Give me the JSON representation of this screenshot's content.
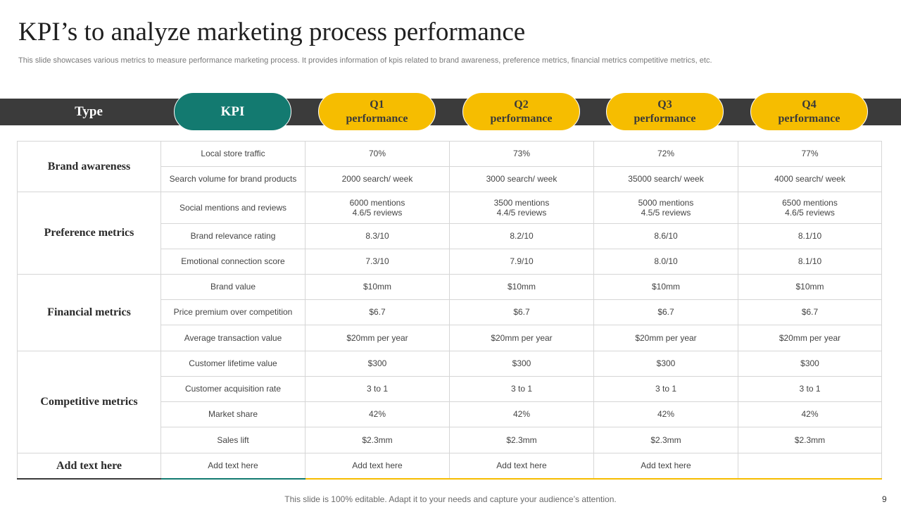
{
  "slide": {
    "title": "KPI’s to analyze marketing process performance",
    "subtitle": "This slide showcases various metrics to measure performance marketing process. It provides information of kpis related to brand awareness, preference metrics, financial metrics competitive metrics, etc.",
    "footer": "This slide is 100% editable. Adapt it to your needs and capture your audience’s attention.",
    "page_number": "9"
  },
  "header": {
    "type": "Type",
    "kpi": "KPI",
    "quarters": [
      {
        "q": "Q1",
        "p": "performance"
      },
      {
        "q": "Q2",
        "p": "performance"
      },
      {
        "q": "Q3",
        "p": "performance"
      },
      {
        "q": "Q4",
        "p": "performance"
      }
    ]
  },
  "categories": [
    "Brand awareness",
    "Preference metrics",
    "Financial metrics",
    "Competitive metrics",
    "Add text here"
  ],
  "rows": [
    {
      "kpi": "Local store traffic",
      "q": [
        "70%",
        "73%",
        "72%",
        "77%"
      ]
    },
    {
      "kpi": "Search volume for brand products",
      "q": [
        "2000 search/ week",
        "3000 search/ week",
        "35000 search/ week",
        "4000 search/ week"
      ]
    },
    {
      "kpi": "Social mentions and reviews",
      "q": [
        {
          "l1": "6000 mentions",
          "l2": "4.6/5 reviews"
        },
        {
          "l1": "3500 mentions",
          "l2": "4.4/5 reviews"
        },
        {
          "l1": "5000 mentions",
          "l2": "4.5/5 reviews"
        },
        {
          "l1": "6500 mentions",
          "l2": "4.6/5 reviews"
        }
      ]
    },
    {
      "kpi": "Brand relevance rating",
      "q": [
        "8.3/10",
        "8.2/10",
        "8.6/10",
        "8.1/10"
      ]
    },
    {
      "kpi": "Emotional connection score",
      "q": [
        "7.3/10",
        "7.9/10",
        "8.0/10",
        "8.1/10"
      ]
    },
    {
      "kpi": "Brand value",
      "q": [
        "$10mm",
        "$10mm",
        "$10mm",
        "$10mm"
      ]
    },
    {
      "kpi": "Price premium over competition",
      "q": [
        "$6.7",
        "$6.7",
        "$6.7",
        "$6.7"
      ]
    },
    {
      "kpi": "Average transaction value",
      "q": [
        "$20mm per year",
        "$20mm per year",
        "$20mm per year",
        "$20mm per year"
      ]
    },
    {
      "kpi": "Customer lifetime value",
      "q": [
        "$300",
        "$300",
        "$300",
        "$300"
      ]
    },
    {
      "kpi": "Customer acquisition rate",
      "q": [
        "3 to 1",
        "3 to 1",
        "3 to 1",
        "3 to 1"
      ]
    },
    {
      "kpi": "Market share",
      "q": [
        "42%",
        "42%",
        "42%",
        "42%"
      ]
    },
    {
      "kpi": "Sales lift",
      "q": [
        "$2.3mm",
        "$2.3mm",
        "$2.3mm",
        "$2.3mm"
      ]
    },
    {
      "kpi": "Add text here",
      "q": [
        "Add text here",
        "Add text here",
        "Add text here",
        ""
      ]
    }
  ]
}
